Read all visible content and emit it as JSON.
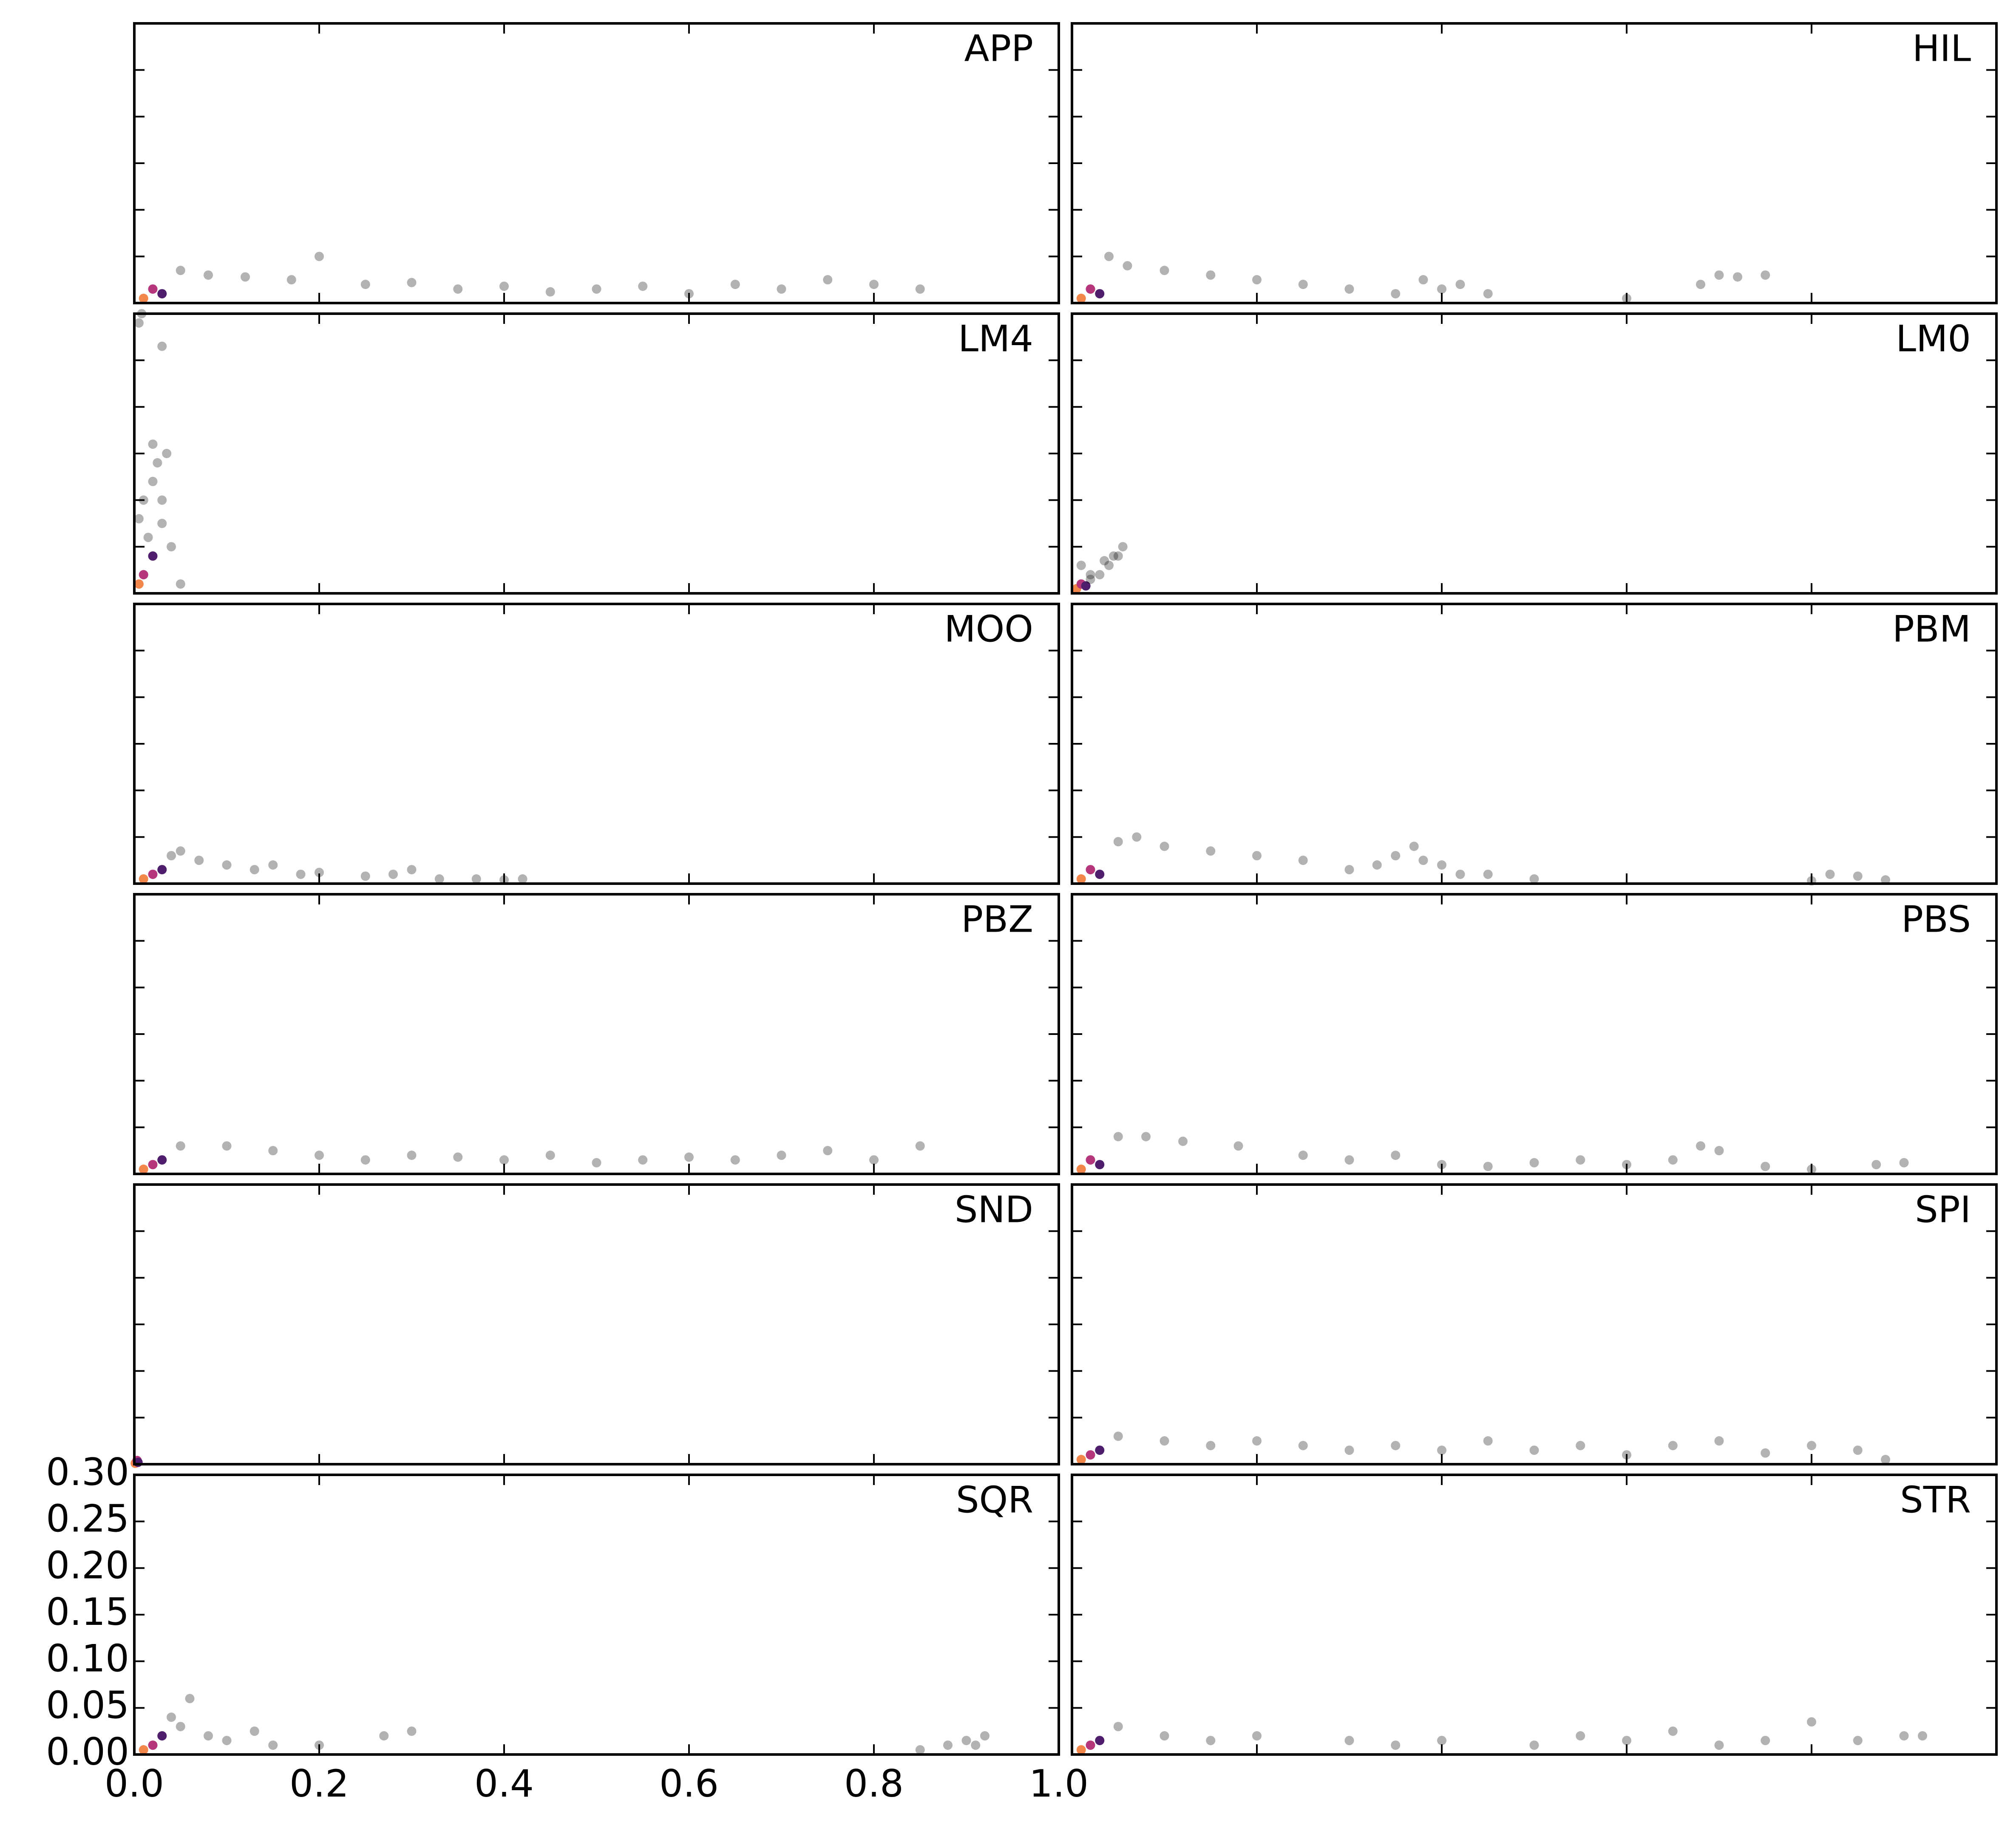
{
  "chart_data": [
    {
      "type": "scatter",
      "label": "APP",
      "xlim": [
        0,
        1
      ],
      "ylim": [
        0,
        0.3
      ],
      "xticks": [
        0,
        0.2,
        0.4,
        0.6,
        0.8,
        1
      ],
      "yticks": [
        0,
        0.05,
        0.1,
        0.15,
        0.2,
        0.25,
        0.3
      ],
      "x": [
        0.01,
        0.02,
        0.03,
        0.05,
        0.08,
        0.12,
        0.17,
        0.2,
        0.25,
        0.3,
        0.35,
        0.4,
        0.45,
        0.5,
        0.55,
        0.6,
        0.65,
        0.7,
        0.75,
        0.8,
        0.85
      ],
      "values": [
        0.005,
        0.015,
        0.01,
        0.035,
        0.03,
        0.028,
        0.025,
        0.05,
        0.02,
        0.022,
        0.015,
        0.018,
        0.012,
        0.015,
        0.018,
        0.01,
        0.02,
        0.015,
        0.025,
        0.02,
        0.015
      ],
      "colors": [
        "#f3864b",
        "#b5367a",
        "#4e1d6b",
        "rgba(0,0,0,0.3)",
        "rgba(0,0,0,0.3)",
        "rgba(0,0,0,0.3)",
        "rgba(0,0,0,0.3)",
        "rgba(0,0,0,0.3)",
        "rgba(0,0,0,0.3)",
        "rgba(0,0,0,0.3)",
        "rgba(0,0,0,0.3)",
        "rgba(0,0,0,0.3)",
        "rgba(0,0,0,0.3)",
        "rgba(0,0,0,0.3)",
        "rgba(0,0,0,0.3)",
        "rgba(0,0,0,0.3)",
        "rgba(0,0,0,0.3)",
        "rgba(0,0,0,0.3)",
        "rgba(0,0,0,0.3)",
        "rgba(0,0,0,0.3)",
        "rgba(0,0,0,0.3)"
      ]
    },
    {
      "type": "scatter",
      "label": "HIL",
      "xlim": [
        0,
        1
      ],
      "ylim": [
        0,
        0.3
      ],
      "xticks": [
        0,
        0.2,
        0.4,
        0.6,
        0.8,
        1
      ],
      "yticks": [
        0,
        0.05,
        0.1,
        0.15,
        0.2,
        0.25,
        0.3
      ],
      "x": [
        0.01,
        0.02,
        0.03,
        0.04,
        0.06,
        0.1,
        0.15,
        0.2,
        0.25,
        0.3,
        0.35,
        0.38,
        0.4,
        0.42,
        0.45,
        0.6,
        0.68,
        0.7,
        0.72,
        0.75
      ],
      "values": [
        0.005,
        0.015,
        0.01,
        0.05,
        0.04,
        0.035,
        0.03,
        0.025,
        0.02,
        0.015,
        0.01,
        0.025,
        0.015,
        0.02,
        0.01,
        0.005,
        0.02,
        0.03,
        0.028,
        0.03
      ],
      "colors": [
        "#f3864b",
        "#b5367a",
        "#4e1d6b",
        "rgba(0,0,0,0.3)",
        "rgba(0,0,0,0.3)",
        "rgba(0,0,0,0.3)",
        "rgba(0,0,0,0.3)",
        "rgba(0,0,0,0.3)",
        "rgba(0,0,0,0.3)",
        "rgba(0,0,0,0.3)",
        "rgba(0,0,0,0.3)",
        "rgba(0,0,0,0.3)",
        "rgba(0,0,0,0.3)",
        "rgba(0,0,0,0.3)",
        "rgba(0,0,0,0.3)",
        "rgba(0,0,0,0.3)",
        "rgba(0,0,0,0.3)",
        "rgba(0,0,0,0.3)",
        "rgba(0,0,0,0.3)",
        "rgba(0,0,0,0.3)"
      ]
    },
    {
      "type": "scatter",
      "label": "LM4",
      "xlim": [
        0,
        1
      ],
      "ylim": [
        0,
        0.3
      ],
      "xticks": [
        0,
        0.2,
        0.4,
        0.6,
        0.8,
        1
      ],
      "yticks": [
        0,
        0.05,
        0.1,
        0.15,
        0.2,
        0.25,
        0.3
      ],
      "x": [
        0.005,
        0.01,
        0.02,
        0.005,
        0.01,
        0.02,
        0.025,
        0.03,
        0.04,
        0.05,
        0.005,
        0.008,
        0.035,
        0.02,
        0.03,
        0.015,
        0.03
      ],
      "values": [
        0.01,
        0.02,
        0.04,
        0.08,
        0.1,
        0.12,
        0.14,
        0.1,
        0.05,
        0.01,
        0.29,
        0.3,
        0.15,
        0.16,
        0.075,
        0.06,
        0.265
      ],
      "colors": [
        "#f3864b",
        "#b5367a",
        "#4e1d6b",
        "rgba(0,0,0,0.3)",
        "rgba(0,0,0,0.3)",
        "rgba(0,0,0,0.3)",
        "rgba(0,0,0,0.3)",
        "rgba(0,0,0,0.3)",
        "rgba(0,0,0,0.3)",
        "rgba(0,0,0,0.3)",
        "rgba(0,0,0,0.3)",
        "rgba(0,0,0,0.3)",
        "rgba(0,0,0,0.3)",
        "rgba(0,0,0,0.3)",
        "rgba(0,0,0,0.3)",
        "rgba(0,0,0,0.3)",
        "rgba(0,0,0,0.3)"
      ]
    },
    {
      "type": "scatter",
      "label": "LM0",
      "xlim": [
        0,
        1
      ],
      "ylim": [
        0,
        0.3
      ],
      "xticks": [
        0,
        0.2,
        0.4,
        0.6,
        0.8,
        1
      ],
      "yticks": [
        0,
        0.05,
        0.1,
        0.15,
        0.2,
        0.25,
        0.3
      ],
      "x": [
        0.005,
        0.01,
        0.015,
        0.02,
        0.03,
        0.04,
        0.05,
        0.055,
        0.01,
        0.02,
        0.035,
        0.045
      ],
      "values": [
        0.005,
        0.01,
        0.008,
        0.015,
        0.02,
        0.03,
        0.04,
        0.05,
        0.03,
        0.02,
        0.035,
        0.04
      ],
      "colors": [
        "#f3864b",
        "#b5367a",
        "#4e1d6b",
        "rgba(0,0,0,0.3)",
        "rgba(0,0,0,0.3)",
        "rgba(0,0,0,0.3)",
        "rgba(0,0,0,0.3)",
        "rgba(0,0,0,0.3)",
        "rgba(0,0,0,0.3)",
        "rgba(0,0,0,0.3)",
        "rgba(0,0,0,0.3)",
        "rgba(0,0,0,0.3)"
      ]
    },
    {
      "type": "scatter",
      "label": "MOO",
      "xlim": [
        0,
        1
      ],
      "ylim": [
        0,
        0.3
      ],
      "xticks": [
        0,
        0.2,
        0.4,
        0.6,
        0.8,
        1
      ],
      "yticks": [
        0,
        0.05,
        0.1,
        0.15,
        0.2,
        0.25,
        0.3
      ],
      "x": [
        0.01,
        0.02,
        0.03,
        0.04,
        0.05,
        0.07,
        0.1,
        0.13,
        0.15,
        0.18,
        0.2,
        0.25,
        0.28,
        0.3,
        0.33,
        0.37,
        0.4,
        0.42
      ],
      "values": [
        0.005,
        0.01,
        0.015,
        0.03,
        0.035,
        0.025,
        0.02,
        0.015,
        0.02,
        0.01,
        0.012,
        0.008,
        0.01,
        0.015,
        0.005,
        0.005,
        0.004,
        0.005
      ],
      "colors": [
        "#f3864b",
        "#b5367a",
        "#4e1d6b",
        "rgba(0,0,0,0.3)",
        "rgba(0,0,0,0.3)",
        "rgba(0,0,0,0.3)",
        "rgba(0,0,0,0.3)",
        "rgba(0,0,0,0.3)",
        "rgba(0,0,0,0.3)",
        "rgba(0,0,0,0.3)",
        "rgba(0,0,0,0.3)",
        "rgba(0,0,0,0.3)",
        "rgba(0,0,0,0.3)",
        "rgba(0,0,0,0.3)",
        "rgba(0,0,0,0.3)",
        "rgba(0,0,0,0.3)",
        "rgba(0,0,0,0.3)",
        "rgba(0,0,0,0.3)"
      ]
    },
    {
      "type": "scatter",
      "label": "PBM",
      "xlim": [
        0,
        1
      ],
      "ylim": [
        0,
        0.3
      ],
      "xticks": [
        0,
        0.2,
        0.4,
        0.6,
        0.8,
        1
      ],
      "yticks": [
        0,
        0.05,
        0.1,
        0.15,
        0.2,
        0.25,
        0.3
      ],
      "x": [
        0.01,
        0.02,
        0.03,
        0.05,
        0.07,
        0.1,
        0.15,
        0.2,
        0.25,
        0.3,
        0.33,
        0.35,
        0.37,
        0.38,
        0.4,
        0.42,
        0.45,
        0.5,
        0.8,
        0.82,
        0.85,
        0.88
      ],
      "values": [
        0.005,
        0.015,
        0.01,
        0.045,
        0.05,
        0.04,
        0.035,
        0.03,
        0.025,
        0.015,
        0.02,
        0.03,
        0.04,
        0.025,
        0.02,
        0.01,
        0.01,
        0.005,
        0.003,
        0.01,
        0.008,
        0.004
      ],
      "colors": [
        "#f3864b",
        "#b5367a",
        "#4e1d6b",
        "rgba(0,0,0,0.3)",
        "rgba(0,0,0,0.3)",
        "rgba(0,0,0,0.3)",
        "rgba(0,0,0,0.3)",
        "rgba(0,0,0,0.3)",
        "rgba(0,0,0,0.3)",
        "rgba(0,0,0,0.3)",
        "rgba(0,0,0,0.3)",
        "rgba(0,0,0,0.3)",
        "rgba(0,0,0,0.3)",
        "rgba(0,0,0,0.3)",
        "rgba(0,0,0,0.3)",
        "rgba(0,0,0,0.3)",
        "rgba(0,0,0,0.3)",
        "rgba(0,0,0,0.3)",
        "rgba(0,0,0,0.3)",
        "rgba(0,0,0,0.3)",
        "rgba(0,0,0,0.3)",
        "rgba(0,0,0,0.3)"
      ]
    },
    {
      "type": "scatter",
      "label": "PBZ",
      "xlim": [
        0,
        1
      ],
      "ylim": [
        0,
        0.3
      ],
      "xticks": [
        0,
        0.2,
        0.4,
        0.6,
        0.8,
        1
      ],
      "yticks": [
        0,
        0.05,
        0.1,
        0.15,
        0.2,
        0.25,
        0.3
      ],
      "x": [
        0.01,
        0.02,
        0.03,
        0.05,
        0.1,
        0.15,
        0.2,
        0.25,
        0.3,
        0.35,
        0.4,
        0.45,
        0.5,
        0.55,
        0.6,
        0.65,
        0.7,
        0.75,
        0.8,
        0.85
      ],
      "values": [
        0.005,
        0.01,
        0.015,
        0.03,
        0.03,
        0.025,
        0.02,
        0.015,
        0.02,
        0.018,
        0.015,
        0.02,
        0.012,
        0.015,
        0.018,
        0.015,
        0.02,
        0.025,
        0.015,
        0.03
      ],
      "colors": [
        "#f3864b",
        "#b5367a",
        "#4e1d6b",
        "rgba(0,0,0,0.3)",
        "rgba(0,0,0,0.3)",
        "rgba(0,0,0,0.3)",
        "rgba(0,0,0,0.3)",
        "rgba(0,0,0,0.3)",
        "rgba(0,0,0,0.3)",
        "rgba(0,0,0,0.3)",
        "rgba(0,0,0,0.3)",
        "rgba(0,0,0,0.3)",
        "rgba(0,0,0,0.3)",
        "rgba(0,0,0,0.3)",
        "rgba(0,0,0,0.3)",
        "rgba(0,0,0,0.3)",
        "rgba(0,0,0,0.3)",
        "rgba(0,0,0,0.3)",
        "rgba(0,0,0,0.3)",
        "rgba(0,0,0,0.3)"
      ]
    },
    {
      "type": "scatter",
      "label": "PBS",
      "xlim": [
        0,
        1
      ],
      "ylim": [
        0,
        0.3
      ],
      "xticks": [
        0,
        0.2,
        0.4,
        0.6,
        0.8,
        1
      ],
      "yticks": [
        0,
        0.05,
        0.1,
        0.15,
        0.2,
        0.25,
        0.3
      ],
      "x": [
        0.01,
        0.02,
        0.03,
        0.05,
        0.08,
        0.12,
        0.18,
        0.25,
        0.3,
        0.35,
        0.4,
        0.45,
        0.5,
        0.55,
        0.6,
        0.65,
        0.68,
        0.7,
        0.75,
        0.8,
        0.87,
        0.9
      ],
      "values": [
        0.005,
        0.015,
        0.01,
        0.04,
        0.04,
        0.035,
        0.03,
        0.02,
        0.015,
        0.02,
        0.01,
        0.008,
        0.012,
        0.015,
        0.01,
        0.015,
        0.03,
        0.025,
        0.008,
        0.005,
        0.01,
        0.012
      ],
      "colors": [
        "#f3864b",
        "#b5367a",
        "#4e1d6b",
        "rgba(0,0,0,0.3)",
        "rgba(0,0,0,0.3)",
        "rgba(0,0,0,0.3)",
        "rgba(0,0,0,0.3)",
        "rgba(0,0,0,0.3)",
        "rgba(0,0,0,0.3)",
        "rgba(0,0,0,0.3)",
        "rgba(0,0,0,0.3)",
        "rgba(0,0,0,0.3)",
        "rgba(0,0,0,0.3)",
        "rgba(0,0,0,0.3)",
        "rgba(0,0,0,0.3)",
        "rgba(0,0,0,0.3)",
        "rgba(0,0,0,0.3)",
        "rgba(0,0,0,0.3)",
        "rgba(0,0,0,0.3)",
        "rgba(0,0,0,0.3)",
        "rgba(0,0,0,0.3)",
        "rgba(0,0,0,0.3)"
      ]
    },
    {
      "type": "scatter",
      "label": "SND",
      "xlim": [
        0,
        1
      ],
      "ylim": [
        0,
        0.3
      ],
      "xticks": [
        0,
        0.2,
        0.4,
        0.6,
        0.8,
        1
      ],
      "yticks": [
        0,
        0.05,
        0.1,
        0.15,
        0.2,
        0.25,
        0.3
      ],
      "x": [
        0.001,
        0.003,
        0.004
      ],
      "values": [
        0.001,
        0.004,
        0.002
      ],
      "colors": [
        "#f3864b",
        "#b5367a",
        "#4e1d6b"
      ]
    },
    {
      "type": "scatter",
      "label": "SPI",
      "xlim": [
        0,
        1
      ],
      "ylim": [
        0,
        0.3
      ],
      "xticks": [
        0,
        0.2,
        0.4,
        0.6,
        0.8,
        1
      ],
      "yticks": [
        0,
        0.05,
        0.1,
        0.15,
        0.2,
        0.25,
        0.3
      ],
      "x": [
        0.01,
        0.02,
        0.03,
        0.05,
        0.1,
        0.15,
        0.2,
        0.25,
        0.3,
        0.35,
        0.4,
        0.45,
        0.5,
        0.55,
        0.6,
        0.65,
        0.7,
        0.75,
        0.8,
        0.85,
        0.88
      ],
      "values": [
        0.005,
        0.01,
        0.015,
        0.03,
        0.025,
        0.02,
        0.025,
        0.02,
        0.015,
        0.02,
        0.015,
        0.025,
        0.015,
        0.02,
        0.01,
        0.02,
        0.025,
        0.012,
        0.02,
        0.015,
        0.005
      ],
      "colors": [
        "#f3864b",
        "#b5367a",
        "#4e1d6b",
        "rgba(0,0,0,0.3)",
        "rgba(0,0,0,0.3)",
        "rgba(0,0,0,0.3)",
        "rgba(0,0,0,0.3)",
        "rgba(0,0,0,0.3)",
        "rgba(0,0,0,0.3)",
        "rgba(0,0,0,0.3)",
        "rgba(0,0,0,0.3)",
        "rgba(0,0,0,0.3)",
        "rgba(0,0,0,0.3)",
        "rgba(0,0,0,0.3)",
        "rgba(0,0,0,0.3)",
        "rgba(0,0,0,0.3)",
        "rgba(0,0,0,0.3)",
        "rgba(0,0,0,0.3)",
        "rgba(0,0,0,0.3)",
        "rgba(0,0,0,0.3)",
        "rgba(0,0,0,0.3)"
      ]
    },
    {
      "type": "scatter",
      "label": "SQR",
      "xlim": [
        0,
        1
      ],
      "ylim": [
        0,
        0.3
      ],
      "xticks": [
        {
          "value": 0,
          "label": "0.0"
        },
        {
          "value": 0.2,
          "label": "0.2"
        },
        {
          "value": 0.4,
          "label": "0.4"
        },
        {
          "value": 0.6,
          "label": "0.6"
        },
        {
          "value": 0.8,
          "label": "0.8"
        },
        {
          "value": 1,
          "label": "1.0"
        }
      ],
      "yticks": [
        {
          "value": 0,
          "label": "0.00"
        },
        {
          "value": 0.05,
          "label": "0.05"
        },
        {
          "value": 0.1,
          "label": "0.10"
        },
        {
          "value": 0.15,
          "label": "0.15"
        },
        {
          "value": 0.2,
          "label": "0.20"
        },
        {
          "value": 0.25,
          "label": "0.25"
        },
        {
          "value": 0.3,
          "label": "0.30"
        }
      ],
      "x": [
        0.01,
        0.02,
        0.03,
        0.04,
        0.05,
        0.06,
        0.08,
        0.1,
        0.13,
        0.15,
        0.2,
        0.27,
        0.3,
        0.85,
        0.88,
        0.9,
        0.92,
        0.91
      ],
      "values": [
        0.005,
        0.01,
        0.02,
        0.04,
        0.03,
        0.06,
        0.02,
        0.015,
        0.025,
        0.01,
        0.01,
        0.02,
        0.025,
        0.005,
        0.01,
        0.015,
        0.02,
        0.01
      ],
      "colors": [
        "#f3864b",
        "#b5367a",
        "#4e1d6b",
        "rgba(0,0,0,0.3)",
        "rgba(0,0,0,0.3)",
        "rgba(0,0,0,0.3)",
        "rgba(0,0,0,0.3)",
        "rgba(0,0,0,0.3)",
        "rgba(0,0,0,0.3)",
        "rgba(0,0,0,0.3)",
        "rgba(0,0,0,0.3)",
        "rgba(0,0,0,0.3)",
        "rgba(0,0,0,0.3)",
        "rgba(0,0,0,0.3)",
        "rgba(0,0,0,0.3)",
        "rgba(0,0,0,0.3)",
        "rgba(0,0,0,0.3)",
        "rgba(0,0,0,0.3)"
      ]
    },
    {
      "type": "scatter",
      "label": "STR",
      "xlim": [
        0,
        1
      ],
      "ylim": [
        0,
        0.3
      ],
      "xticks": [
        0,
        0.2,
        0.4,
        0.6,
        0.8,
        1
      ],
      "yticks": [
        0,
        0.05,
        0.1,
        0.15,
        0.2,
        0.25,
        0.3
      ],
      "x": [
        0.01,
        0.02,
        0.03,
        0.05,
        0.1,
        0.15,
        0.2,
        0.3,
        0.35,
        0.4,
        0.5,
        0.55,
        0.6,
        0.65,
        0.7,
        0.75,
        0.8,
        0.85,
        0.9,
        0.92
      ],
      "values": [
        0.005,
        0.01,
        0.015,
        0.03,
        0.02,
        0.015,
        0.02,
        0.015,
        0.01,
        0.015,
        0.01,
        0.02,
        0.015,
        0.025,
        0.01,
        0.015,
        0.035,
        0.015,
        0.02,
        0.02
      ],
      "colors": [
        "#f3864b",
        "#b5367a",
        "#4e1d6b",
        "rgba(0,0,0,0.3)",
        "rgba(0,0,0,0.3)",
        "rgba(0,0,0,0.3)",
        "rgba(0,0,0,0.3)",
        "rgba(0,0,0,0.3)",
        "rgba(0,0,0,0.3)",
        "rgba(0,0,0,0.3)",
        "rgba(0,0,0,0.3)",
        "rgba(0,0,0,0.3)",
        "rgba(0,0,0,0.3)",
        "rgba(0,0,0,0.3)",
        "rgba(0,0,0,0.3)",
        "rgba(0,0,0,0.3)",
        "rgba(0,0,0,0.3)",
        "rgba(0,0,0,0.3)",
        "rgba(0,0,0,0.3)",
        "rgba(0,0,0,0.3)"
      ]
    }
  ]
}
